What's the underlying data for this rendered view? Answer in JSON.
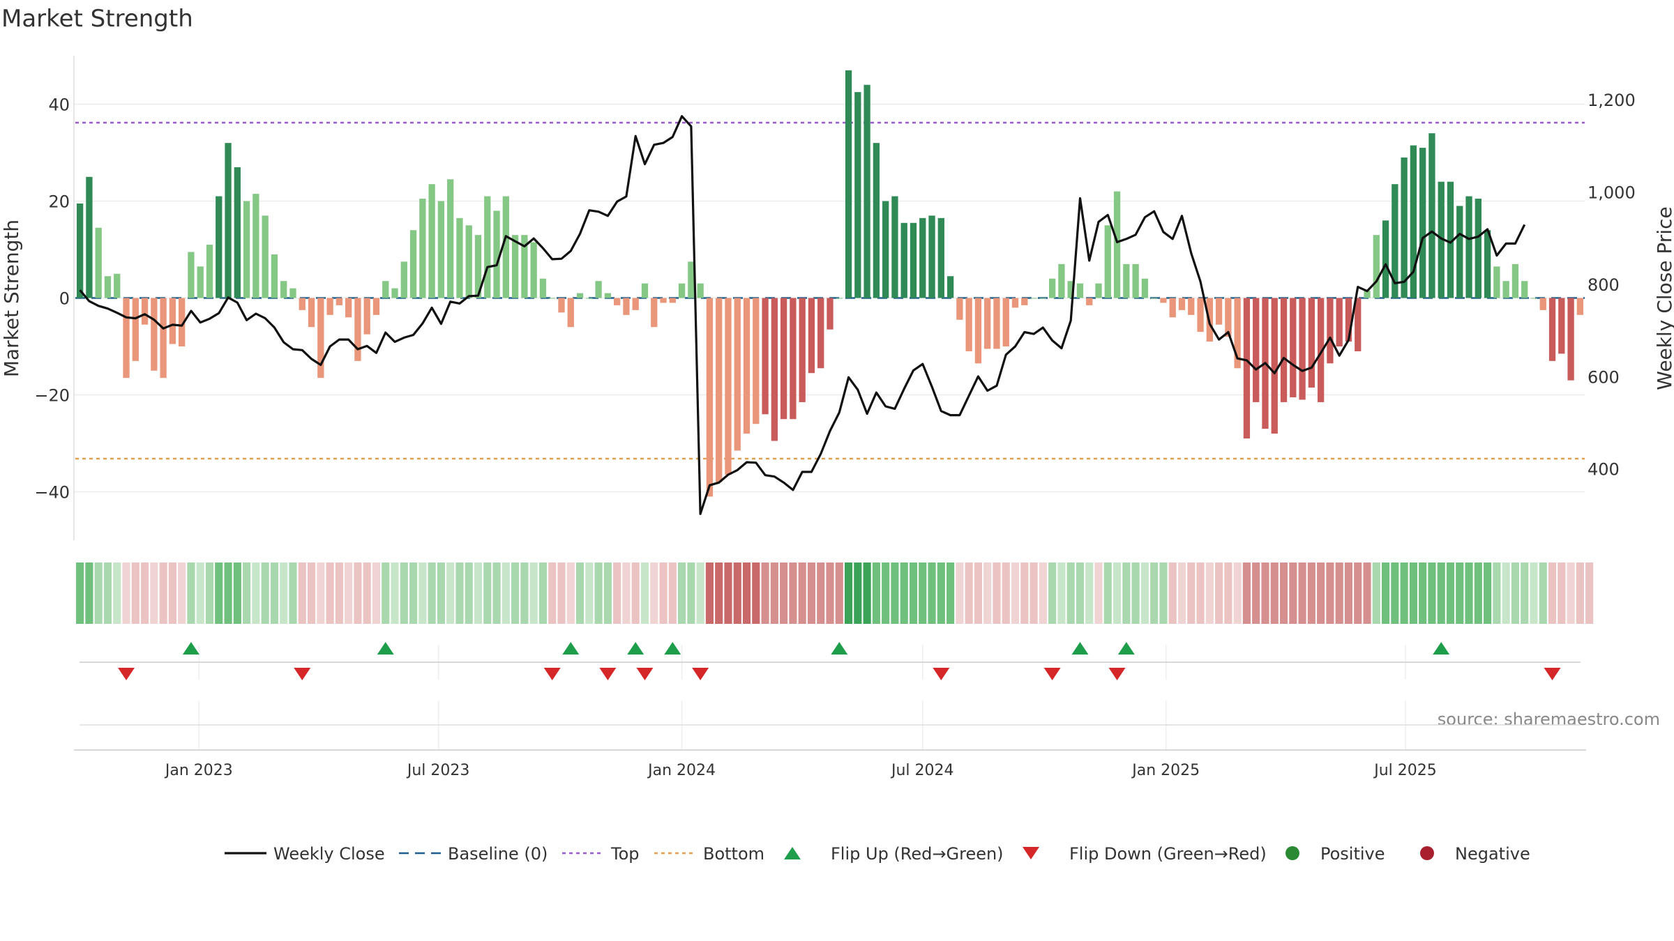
{
  "chart_data": {
    "type": "bar",
    "title": "Market Strength",
    "ylabel_left": "Market Strength",
    "ylabel_right": "Weekly Close Price",
    "ylim_left": [
      -50,
      50
    ],
    "ylim_right": [
      250,
      1300
    ],
    "yticks_left": [
      40,
      20,
      0,
      -20,
      -40
    ],
    "yticks_right": [
      1200,
      1000,
      800,
      600,
      400
    ],
    "yticks_left_labels": [
      "40",
      "20",
      "0",
      "−20",
      "−40"
    ],
    "yticks_right_labels": [
      "1,200",
      "1,000",
      "800",
      "600",
      "400"
    ],
    "x_start": "2022-10-03",
    "x_step_days": 7,
    "x_ticks": [
      {
        "label": "Jan 2023",
        "date": "2023-01-01"
      },
      {
        "label": "Jul 2023",
        "date": "2023-07-01"
      },
      {
        "label": "Jan 2024",
        "date": "2024-01-01"
      },
      {
        "label": "Jul 2024",
        "date": "2024-07-01"
      },
      {
        "label": "Jan 2025",
        "date": "2025-01-01"
      },
      {
        "label": "Jul 2025",
        "date": "2025-07-01"
      }
    ],
    "strength": [
      19.5,
      25,
      14.5,
      4.5,
      5,
      -16.5,
      -13,
      -5.5,
      -15,
      -16.5,
      -9.5,
      -10,
      9.5,
      6.5,
      11,
      21,
      32,
      27,
      20,
      21.5,
      17,
      9,
      3.5,
      2,
      -2.5,
      -6,
      -16.5,
      -3.5,
      -1.5,
      -4,
      -13,
      -7.5,
      -3.5,
      3.5,
      2,
      7.5,
      14,
      20.5,
      23.5,
      20,
      24.5,
      16.5,
      15,
      13,
      21,
      18,
      21,
      13,
      13,
      11.5,
      4,
      0,
      -3,
      -6,
      1,
      0,
      3.5,
      1,
      -1.5,
      -3.5,
      -2.5,
      3,
      -6,
      -1,
      -1,
      3,
      7.5,
      3,
      -41,
      -38,
      -36.5,
      -31.5,
      -28,
      -26,
      -24,
      -29.5,
      -25,
      -25,
      -21.5,
      -15.5,
      -14.5,
      -6.5,
      0,
      47,
      42.5,
      44,
      32,
      20,
      21,
      15.5,
      15.5,
      16.5,
      17,
      16.5,
      4.5,
      -4.5,
      -11,
      -13.5,
      -10.5,
      -10.5,
      -10,
      -2,
      -1.5,
      0,
      0,
      4,
      7,
      3.5,
      3,
      -1.5,
      3,
      15,
      22,
      7,
      7,
      4,
      0,
      -1,
      -4,
      -2.5,
      -3.5,
      -7,
      -9,
      -5.5,
      -8,
      -14.5,
      -29,
      -21.5,
      -27,
      -28,
      -21.5,
      -20.5,
      -21,
      -18.5,
      -21.5,
      -13.5,
      -10,
      -9,
      -11,
      1.5,
      13,
      16,
      23.5,
      29,
      31.5,
      31,
      34,
      24,
      24,
      19,
      21,
      20.5,
      14,
      6.5,
      3.5,
      7,
      3.5,
      0,
      -2.5,
      -13,
      -11.5,
      -17,
      -3.5
    ],
    "close": [
      792,
      768,
      758,
      752,
      743,
      733,
      731,
      740,
      728,
      709,
      717,
      715,
      747,
      722,
      730,
      742,
      776,
      765,
      727,
      741,
      731,
      711,
      679,
      664,
      662,
      643,
      630,
      670,
      685,
      685,
      664,
      671,
      656,
      700,
      680,
      689,
      695,
      720,
      754,
      719,
      767,
      763,
      779,
      780,
      842,
      846,
      909,
      898,
      887,
      904,
      883,
      859,
      860,
      877,
      914,
      965,
      962,
      953,
      984,
      995,
      1126,
      1065,
      1107,
      1111,
      1124,
      1169,
      1147,
      307,
      369,
      375,
      392,
      402,
      419,
      418,
      391,
      388,
      375,
      359,
      398,
      398,
      437,
      487,
      527,
      603,
      576,
      524,
      570,
      540,
      535,
      578,
      618,
      632,
      583,
      530,
      521,
      521,
      563,
      605,
      574,
      585,
      652,
      670,
      701,
      697,
      711,
      683,
      666,
      726,
      991,
      856,
      940,
      955,
      896,
      903,
      912,
      950,
      963,
      918,
      903,
      953,
      872,
      811,
      719,
      685,
      701,
      644,
      640,
      620,
      634,
      612,
      645,
      630,
      617,
      624,
      656,
      689,
      650,
      684,
      799,
      790,
      811,
      848,
      807,
      810,
      832,
      905,
      919,
      904,
      895,
      914,
      903,
      908,
      924,
      867,
      893,
      893,
      934
    ]
  },
  "states": [
    2,
    2,
    1,
    1,
    1,
    -1,
    -1,
    -1,
    -1,
    -1,
    -1,
    -1,
    1,
    1,
    1,
    2,
    2,
    2,
    1,
    1,
    1,
    1,
    1,
    1,
    -1,
    -1,
    -1,
    -1,
    -1,
    -1,
    -1,
    -1,
    -1,
    1,
    1,
    1,
    1,
    1,
    1,
    1,
    1,
    1,
    1,
    1,
    1,
    1,
    1,
    1,
    1,
    1,
    1,
    -1,
    -1,
    -1,
    1,
    1,
    1,
    1,
    -1,
    -1,
    -1,
    1,
    -1,
    -1,
    -1,
    1,
    1,
    1,
    -3,
    -3,
    -3,
    -3,
    -3,
    -3,
    -2,
    -2,
    -2,
    -2,
    -2,
    -2,
    -2,
    -2,
    -2,
    3,
    3,
    3,
    2,
    2,
    2,
    2,
    2,
    2,
    2,
    2,
    2,
    -1,
    -1,
    -1,
    -1,
    -1,
    -1,
    -1,
    -1,
    -1,
    -1,
    1,
    1,
    1,
    1,
    1,
    -1,
    1,
    1,
    1,
    1,
    1,
    1,
    1,
    -1,
    -1,
    -1,
    -1,
    -1,
    -1,
    -1,
    -1,
    -2,
    -2,
    -2,
    -2,
    -2,
    -2,
    -2,
    -2,
    -2,
    -2,
    -2,
    -2,
    -2,
    -2,
    1,
    2,
    2,
    2,
    2,
    2,
    2,
    2,
    2,
    2,
    2,
    2,
    2,
    1,
    1,
    1,
    1,
    1,
    1,
    -1,
    -1,
    -1,
    -1,
    -1
  ],
  "flips_up": [
    12,
    33,
    53,
    60,
    64,
    82,
    108,
    113,
    147
  ],
  "flips_down": [
    5,
    24,
    51,
    57,
    61,
    67,
    93,
    105,
    112,
    159
  ],
  "source_note": "source: sharemaestro.com",
  "legend": [
    {
      "label": "Weekly Close",
      "kind": "line",
      "color": "#111111"
    },
    {
      "label": "Baseline (0)",
      "kind": "dash",
      "color": "#1f5e8c"
    },
    {
      "label": "Top",
      "kind": "dot",
      "color": "#9b59d0"
    },
    {
      "label": "Bottom",
      "kind": "dot",
      "color": "#e0a050"
    },
    {
      "label": "Flip Up (Red→Green)",
      "kind": "tri-up",
      "color": "#1e9e4a"
    },
    {
      "label": "Flip Down (Green→Red)",
      "kind": "tri-down",
      "color": "#d62728"
    },
    {
      "label": "Positive",
      "kind": "circle",
      "color": "#2a8a34"
    },
    {
      "label": "Negative",
      "kind": "circle",
      "color": "#a8202d"
    }
  ],
  "colors": {
    "pos_strong": "#2f8a56",
    "pos_light": "#85c785",
    "neg_strong": "#c95b5b",
    "neg_light": "#e9967a",
    "baseline": "#1f5e8c",
    "top_line": "#9b59d0",
    "bottom_line": "#e0a050",
    "close_line": "#111111"
  }
}
